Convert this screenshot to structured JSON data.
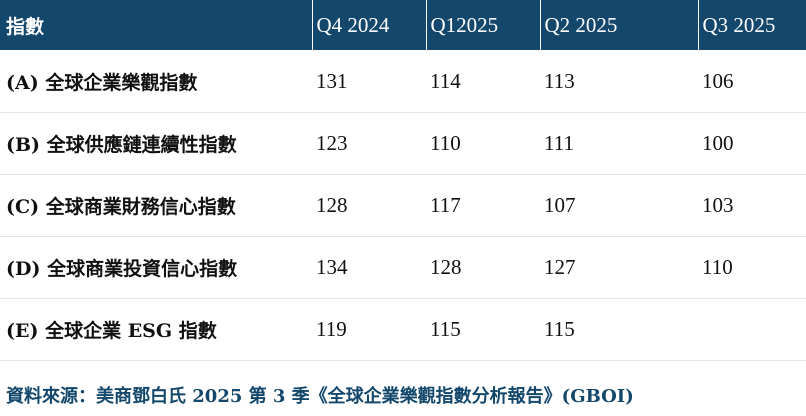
{
  "table": {
    "headers": [
      "指數",
      "Q4 2024",
      "Q12025",
      "Q2 2025",
      "Q3 2025"
    ],
    "rows": [
      [
        "(A) 全球企業樂觀指數",
        "131",
        "114",
        "113",
        "106"
      ],
      [
        "(B) 全球供應鏈連續性指數",
        "123",
        "110",
        "111",
        "100"
      ],
      [
        "(C) 全球商業財務信心指數",
        "128",
        "117",
        "107",
        "103"
      ],
      [
        "(D) 全球商業投資信心指數",
        "134",
        "128",
        "127",
        "110"
      ],
      [
        "(E) 全球企業 ESG 指數",
        "119",
        "115",
        "115",
        ""
      ]
    ]
  },
  "source": "資料來源：美商鄧白氏 2025 第 3 季《全球企業樂觀指數分析報告》(GBOI)",
  "colors": {
    "header_bg": "#13476b",
    "header_text": "#ffffff",
    "source_text": "#13476b"
  }
}
